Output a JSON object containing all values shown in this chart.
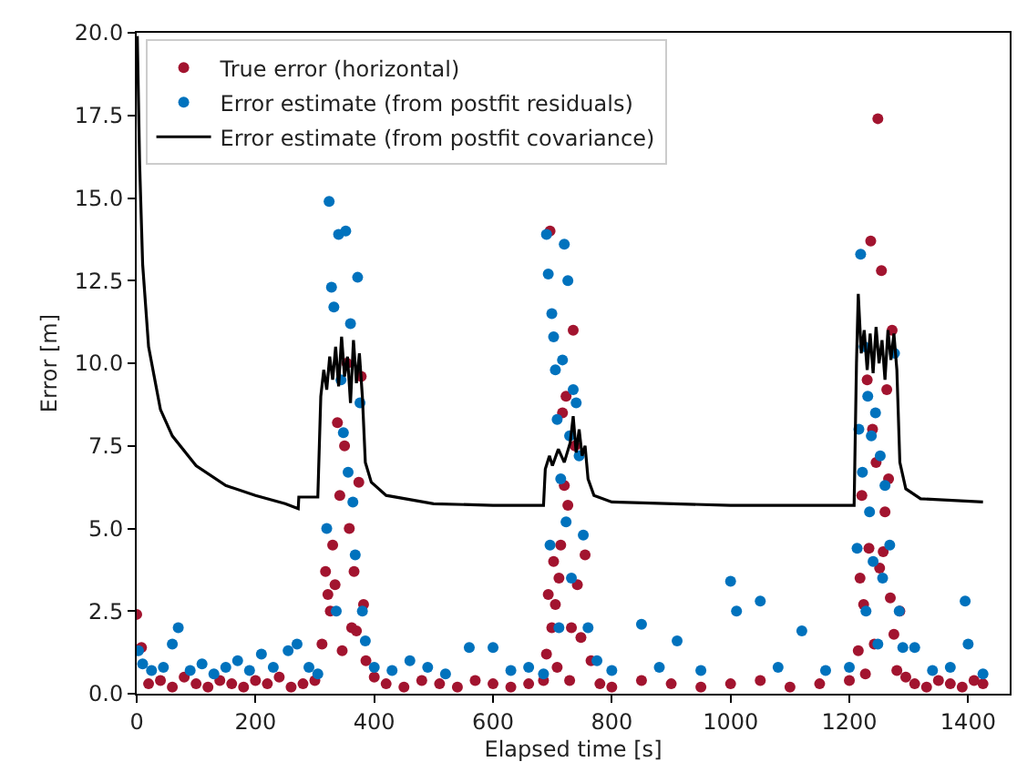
{
  "chart_data": {
    "type": "scatter",
    "xlabel": "Elapsed time [s]",
    "ylabel": "Error [m]",
    "xlim": [
      0,
      1470
    ],
    "xticks": [
      0,
      200,
      400,
      600,
      800,
      1000,
      1200,
      1400
    ],
    "ylim": [
      0,
      20
    ],
    "yticks": [
      {
        "value": 0,
        "label": "0.0"
      },
      2.5,
      {
        "value": 5,
        "label": "5.0"
      },
      7.5,
      {
        "value": 10,
        "label": "10.0"
      },
      12.5,
      {
        "value": 15,
        "label": "15.0"
      },
      17.5,
      {
        "value": 20,
        "label": "20.0"
      }
    ],
    "legend": "top left",
    "marker": "circle",
    "series": [
      {
        "name": "True error (horizontal)",
        "color": "#a2142f",
        "x": [
          0,
          8,
          20,
          40,
          60,
          80,
          100,
          120,
          140,
          160,
          180,
          200,
          220,
          240,
          260,
          280,
          300,
          312,
          318,
          322,
          326,
          330,
          334,
          338,
          342,
          346,
          350,
          354,
          358,
          362,
          366,
          370,
          374,
          378,
          382,
          386,
          400,
          420,
          450,
          480,
          510,
          540,
          570,
          600,
          630,
          660,
          685,
          690,
          693,
          696,
          699,
          702,
          705,
          708,
          711,
          714,
          717,
          720,
          723,
          726,
          729,
          732,
          735,
          738,
          742,
          748,
          755,
          765,
          780,
          800,
          850,
          900,
          950,
          1000,
          1050,
          1100,
          1150,
          1200,
          1215,
          1218,
          1221,
          1224,
          1227,
          1230,
          1233,
          1236,
          1239,
          1242,
          1245,
          1248,
          1251,
          1254,
          1257,
          1260,
          1263,
          1266,
          1269,
          1272,
          1275,
          1280,
          1285,
          1295,
          1310,
          1330,
          1350,
          1370,
          1390,
          1410,
          1425
        ],
        "values": [
          2.4,
          1.4,
          0.3,
          0.4,
          0.2,
          0.5,
          0.3,
          0.2,
          0.4,
          0.3,
          0.2,
          0.4,
          0.3,
          0.5,
          0.2,
          0.3,
          0.4,
          1.5,
          3.7,
          3.0,
          2.5,
          4.5,
          3.3,
          8.2,
          6.0,
          1.3,
          7.5,
          10.0,
          5.0,
          2.0,
          3.7,
          1.9,
          6.4,
          9.6,
          2.7,
          1.0,
          0.5,
          0.3,
          0.2,
          0.4,
          0.3,
          0.2,
          0.4,
          0.3,
          0.2,
          0.3,
          0.4,
          1.2,
          3.0,
          14.0,
          2.0,
          4.0,
          2.7,
          0.8,
          3.5,
          4.5,
          8.5,
          6.3,
          9.0,
          5.7,
          0.4,
          2.0,
          11.0,
          7.5,
          3.3,
          1.7,
          4.2,
          1.0,
          0.3,
          0.2,
          0.4,
          0.3,
          0.2,
          0.3,
          0.4,
          0.2,
          0.3,
          0.4,
          1.3,
          3.5,
          6.0,
          2.7,
          0.6,
          9.5,
          4.4,
          13.7,
          8.0,
          1.5,
          7.0,
          17.4,
          3.8,
          12.8,
          4.3,
          5.5,
          9.2,
          6.5,
          2.9,
          11.0,
          1.8,
          0.7,
          2.5,
          0.5,
          0.3,
          0.2,
          0.4,
          0.3,
          0.2,
          0.4,
          0.3
        ]
      },
      {
        "name": "Error estimate (from postfit residuals)",
        "color": "#0072bd",
        "x": [
          3,
          10,
          25,
          45,
          60,
          70,
          90,
          110,
          130,
          150,
          170,
          190,
          210,
          230,
          255,
          270,
          290,
          305,
          320,
          324,
          328,
          332,
          336,
          340,
          344,
          348,
          352,
          356,
          360,
          364,
          368,
          372,
          376,
          380,
          385,
          400,
          430,
          460,
          490,
          520,
          560,
          600,
          630,
          660,
          685,
          690,
          693,
          696,
          699,
          702,
          705,
          708,
          711,
          714,
          717,
          720,
          723,
          726,
          729,
          732,
          735,
          740,
          745,
          752,
          760,
          775,
          800,
          850,
          880,
          910,
          950,
          1000,
          1010,
          1050,
          1080,
          1120,
          1160,
          1200,
          1213,
          1216,
          1219,
          1222,
          1225,
          1228,
          1231,
          1234,
          1237,
          1240,
          1244,
          1248,
          1252,
          1256,
          1260,
          1268,
          1276,
          1284,
          1290,
          1310,
          1340,
          1370,
          1395,
          1400,
          1425
        ],
        "values": [
          1.3,
          0.9,
          0.7,
          0.8,
          1.5,
          2.0,
          0.7,
          0.9,
          0.6,
          0.8,
          1.0,
          0.7,
          1.2,
          0.8,
          1.3,
          1.5,
          0.8,
          0.6,
          5.0,
          14.9,
          12.3,
          11.7,
          2.5,
          13.9,
          9.5,
          7.9,
          14.0,
          6.7,
          11.2,
          5.8,
          4.2,
          12.6,
          8.8,
          2.5,
          1.6,
          0.8,
          0.7,
          1.0,
          0.8,
          0.6,
          1.4,
          1.4,
          0.7,
          0.8,
          0.6,
          13.9,
          12.7,
          4.5,
          11.5,
          10.8,
          9.8,
          8.3,
          2.0,
          6.5,
          10.1,
          13.6,
          5.2,
          12.5,
          7.8,
          3.5,
          9.2,
          8.8,
          7.2,
          4.8,
          2.0,
          1.0,
          0.7,
          2.1,
          0.8,
          1.6,
          0.7,
          3.4,
          2.5,
          2.8,
          0.8,
          1.9,
          0.7,
          0.8,
          4.4,
          8.0,
          13.3,
          6.7,
          10.5,
          2.5,
          9.0,
          5.5,
          7.8,
          4.0,
          8.5,
          1.5,
          7.2,
          3.5,
          6.3,
          4.5,
          10.3,
          2.5,
          1.4,
          1.4,
          0.7,
          0.8,
          2.8,
          1.5,
          0.6
        ]
      },
      {
        "name": "Error estimate (from postfit covariance)",
        "color": "#000000",
        "type": "line",
        "marker": "none",
        "x": [
          1,
          5,
          10,
          20,
          40,
          60,
          100,
          150,
          200,
          250,
          272,
          273,
          305,
          310,
          315,
          320,
          325,
          330,
          335,
          340,
          345,
          350,
          355,
          360,
          365,
          370,
          375,
          380,
          385,
          395,
          420,
          500,
          600,
          685,
          688,
          695,
          700,
          710,
          720,
          730,
          735,
          740,
          745,
          750,
          755,
          760,
          770,
          800,
          1000,
          1208,
          1212,
          1215,
          1220,
          1225,
          1230,
          1235,
          1240,
          1245,
          1250,
          1255,
          1260,
          1265,
          1270,
          1275,
          1280,
          1285,
          1295,
          1320,
          1425
        ],
        "values": [
          19.9,
          16,
          13,
          10.5,
          8.6,
          7.8,
          6.9,
          6.3,
          6.0,
          5.75,
          5.6,
          5.95,
          5.95,
          9.0,
          9.8,
          9.2,
          10.2,
          9.5,
          10.5,
          9.3,
          10.8,
          9.6,
          10.2,
          8.8,
          10.7,
          9.4,
          10.3,
          9.0,
          7.0,
          6.4,
          6.0,
          5.75,
          5.7,
          5.7,
          6.8,
          7.2,
          6.9,
          7.4,
          7.0,
          7.6,
          8.4,
          7.3,
          8.0,
          7.2,
          7.5,
          6.5,
          6.0,
          5.8,
          5.7,
          5.7,
          10.0,
          12.1,
          10.3,
          11.0,
          9.8,
          10.9,
          9.7,
          11.1,
          10.0,
          10.7,
          9.5,
          11.0,
          10.1,
          10.9,
          9.8,
          7.0,
          6.2,
          5.9,
          5.8
        ]
      }
    ]
  }
}
